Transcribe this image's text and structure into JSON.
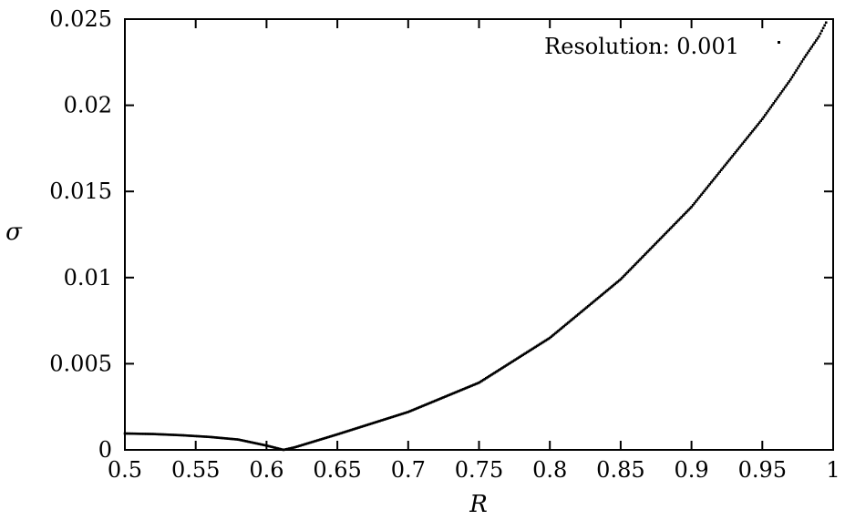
{
  "chart_data": {
    "type": "scatter",
    "title": "",
    "xlabel": "R",
    "ylabel": "σ",
    "xlim": [
      0.5,
      1.0
    ],
    "ylim": [
      0,
      0.025
    ],
    "x_ticks": [
      0.5,
      0.55,
      0.6,
      0.65,
      0.7,
      0.75,
      0.8,
      0.85,
      0.9,
      0.95,
      1.0
    ],
    "x_tick_labels": [
      "0.5",
      "0.55",
      "0.6",
      "0.65",
      "0.7",
      "0.75",
      "0.8",
      "0.85",
      "0.9",
      "0.95",
      "1"
    ],
    "y_ticks": [
      0,
      0.005,
      0.01,
      0.015,
      0.02,
      0.025
    ],
    "y_tick_labels": [
      "0",
      "0.005",
      "0.01",
      "0.015",
      "0.02",
      "0.025"
    ],
    "grid": false,
    "legend": {
      "position": "top-right",
      "entries": [
        {
          "name": "Resolution: 0.001",
          "marker": "dot",
          "color": "#000000"
        }
      ]
    },
    "series": [
      {
        "name": "Resolution: 0.001",
        "color": "#000000",
        "marker": "dot",
        "step": 0.001,
        "anchors": {
          "x": [
            0.5,
            0.52,
            0.54,
            0.56,
            0.58,
            0.6,
            0.612,
            0.62,
            0.65,
            0.7,
            0.75,
            0.8,
            0.85,
            0.9,
            0.95,
            0.97,
            0.98,
            0.99,
            0.995
          ],
          "y": [
            0.00095,
            0.00092,
            0.00085,
            0.00075,
            0.0006,
            0.00025,
            0.0,
            0.00015,
            0.0009,
            0.0022,
            0.0039,
            0.0065,
            0.0099,
            0.0141,
            0.0192,
            0.0215,
            0.0228,
            0.024,
            0.0248
          ]
        }
      }
    ]
  }
}
